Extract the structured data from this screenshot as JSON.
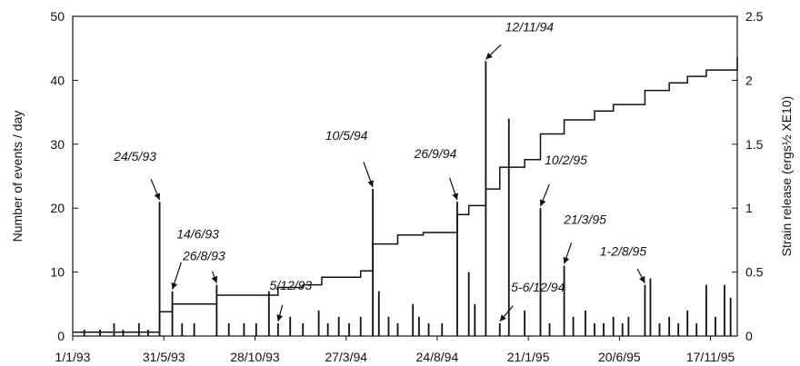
{
  "chart_data": {
    "type": "bar",
    "title": "",
    "xlabel": "",
    "ylabel": "Number of events / day",
    "ylabel_right": "Strain release (ergs½ XE10)",
    "xlim": [
      "1993-01-01",
      "1995-12-31"
    ],
    "ylim": [
      0,
      50
    ],
    "ylim_right": [
      0,
      2.5
    ],
    "x_tick_labels": [
      "1/1/93",
      "31/5/93",
      "28/10/93",
      "27/3/94",
      "24/8/94",
      "21/1/95",
      "20/6/95",
      "17/11/95"
    ],
    "x_tick_dates": [
      "1993-01-01",
      "1993-05-31",
      "1993-10-28",
      "1994-03-27",
      "1994-08-24",
      "1995-01-21",
      "1995-06-20",
      "1995-11-17"
    ],
    "y_ticks_left": [
      0,
      10,
      20,
      30,
      40,
      50
    ],
    "y_ticks_right": [
      0,
      0.5,
      1,
      1.5,
      2,
      2.5
    ],
    "series": [
      {
        "type": "bar",
        "axis": "left",
        "x": [
          "1993-01-20",
          "1993-02-15",
          "1993-03-10",
          "1993-03-25",
          "1993-04-20",
          "1993-05-05",
          "1993-05-24",
          "1993-06-14",
          "1993-06-30",
          "1993-07-20",
          "1993-08-26",
          "1993-09-15",
          "1993-10-10",
          "1993-10-30",
          "1993-11-20",
          "1993-12-05",
          "1993-12-25",
          "1994-01-15",
          "1994-02-10",
          "1994-02-25",
          "1994-03-15",
          "1994-04-01",
          "1994-04-20",
          "1994-05-10",
          "1994-05-20",
          "1994-06-05",
          "1994-06-20",
          "1994-07-15",
          "1994-07-25",
          "1994-08-10",
          "1994-09-01",
          "1994-09-26",
          "1994-10-15",
          "1994-10-25",
          "1994-11-12",
          "1994-12-05",
          "1994-12-20",
          "1995-01-15",
          "1995-02-10",
          "1995-02-25",
          "1995-03-21",
          "1995-04-05",
          "1995-04-25",
          "1995-05-10",
          "1995-05-25",
          "1995-06-10",
          "1995-06-25",
          "1995-07-05",
          "1995-08-01",
          "1995-08-10",
          "1995-08-25",
          "1995-09-10",
          "1995-09-25",
          "1995-10-10",
          "1995-10-25",
          "1995-11-10",
          "1995-11-25",
          "1995-12-10",
          "1995-12-20"
        ],
        "values": [
          1,
          1,
          2,
          1,
          2,
          1,
          21,
          7,
          2,
          2,
          8,
          2,
          2,
          2,
          7,
          2,
          3,
          2,
          4,
          2,
          3,
          2,
          3,
          23,
          7,
          3,
          2,
          5,
          3,
          2,
          2,
          21,
          10,
          5,
          43,
          2,
          34,
          4,
          20,
          2,
          11,
          3,
          4,
          2,
          2,
          3,
          2,
          3,
          8,
          9,
          2,
          3,
          2,
          4,
          2,
          8,
          3,
          8,
          6
        ]
      },
      {
        "type": "step",
        "axis": "right",
        "x": [
          "1993-01-01",
          "1993-05-24",
          "1993-06-14",
          "1993-08-26",
          "1993-12-05",
          "1994-01-15",
          "1994-02-15",
          "1994-04-20",
          "1994-05-10",
          "1994-06-20",
          "1994-08-01",
          "1994-09-26",
          "1994-10-15",
          "1994-11-12",
          "1994-12-05",
          "1995-01-15",
          "1995-02-10",
          "1995-03-21",
          "1995-05-10",
          "1995-06-10",
          "1995-08-01",
          "1995-09-10",
          "1995-10-10",
          "1995-11-10",
          "1995-12-31"
        ],
        "values": [
          0.03,
          0.19,
          0.25,
          0.32,
          0.38,
          0.4,
          0.46,
          0.51,
          0.72,
          0.79,
          0.81,
          0.95,
          1.02,
          1.15,
          1.32,
          1.38,
          1.58,
          1.69,
          1.76,
          1.81,
          1.92,
          1.98,
          2.03,
          2.08,
          2.18
        ]
      }
    ],
    "annotations": [
      {
        "label": "24/5/93",
        "date": "1993-05-24"
      },
      {
        "label": "14/6/93",
        "date": "1993-06-14"
      },
      {
        "label": "26/8/93",
        "date": "1993-08-26"
      },
      {
        "label": "5/12/93",
        "date": "1993-12-05"
      },
      {
        "label": "10/5/94",
        "date": "1994-05-10"
      },
      {
        "label": "26/9/94",
        "date": "1994-09-26"
      },
      {
        "label": "12/11/94",
        "date": "1994-11-12"
      },
      {
        "label": "5-6/12/94",
        "date": "1994-12-05"
      },
      {
        "label": "10/2/95",
        "date": "1995-02-10"
      },
      {
        "label": "21/3/95",
        "date": "1995-03-21"
      },
      {
        "label": "1-2/8/95",
        "date": "1995-08-01"
      }
    ],
    "grid": false,
    "colors": {
      "bars": "#111111",
      "step": "#111111",
      "axes": "#111111",
      "background": "#ffffff"
    }
  }
}
